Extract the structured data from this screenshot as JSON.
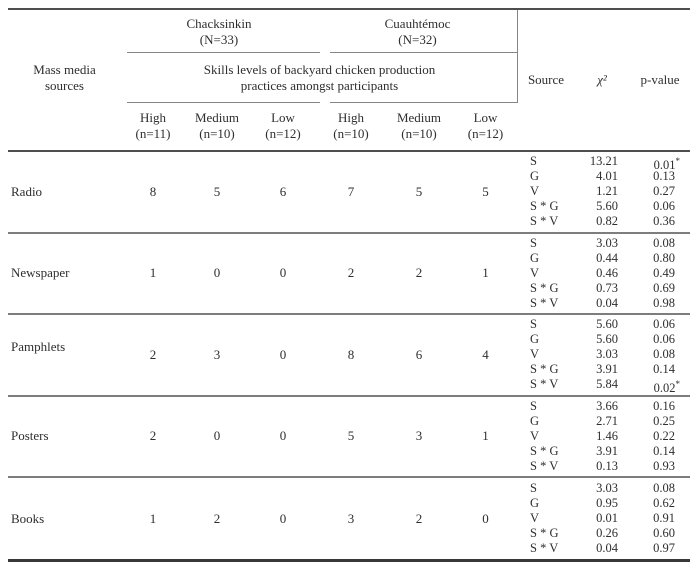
{
  "page": {
    "background": "#ffffff",
    "text_color": "#2e2e2e",
    "rule_color": "#4e4e4e"
  },
  "table": {
    "row_header": {
      "line1": "Mass media",
      "line2": "sources"
    },
    "groups": [
      {
        "name": "Chacksinkin",
        "n_label": "(N=33)"
      },
      {
        "name": "Cuauhtémoc",
        "n_label": "(N=32)"
      }
    ],
    "span_header": {
      "line1": "Skills levels of backyard chicken production",
      "line2": "practices amongst participants"
    },
    "subcolumns": [
      {
        "level": "High",
        "n_label": "(n=11)"
      },
      {
        "level": "Medium",
        "n_label": "(n=10)"
      },
      {
        "level": "Low",
        "n_label": "(n=12)"
      },
      {
        "level": "High",
        "n_label": "(n=10)"
      },
      {
        "level": "Medium",
        "n_label": "(n=10)"
      },
      {
        "level": "Low",
        "n_label": "(n=12)"
      }
    ],
    "stat_headers": {
      "source": "Source",
      "chi_square": "χ²",
      "p_value": "p-value"
    },
    "significance_marker": "*",
    "rows": [
      {
        "label": "Radio",
        "values": [
          "8",
          "5",
          "6",
          "7",
          "5",
          "5"
        ],
        "stats": [
          {
            "source": "S",
            "chi": "13.21",
            "p": "0.01",
            "significant": true
          },
          {
            "source": "G",
            "chi": "4.01",
            "p": "0.13",
            "significant": false
          },
          {
            "source": "V",
            "chi": "1.21",
            "p": "0.27",
            "significant": false
          },
          {
            "source": "S * G",
            "chi": "5.60",
            "p": "0.06",
            "significant": false
          },
          {
            "source": "S * V",
            "chi": "0.82",
            "p": "0.36",
            "significant": false
          }
        ]
      },
      {
        "label": "Newspaper",
        "values": [
          "1",
          "0",
          "0",
          "2",
          "2",
          "1"
        ],
        "stats": [
          {
            "source": "S",
            "chi": "3.03",
            "p": "0.08",
            "significant": false
          },
          {
            "source": "G",
            "chi": "0.44",
            "p": "0.80",
            "significant": false
          },
          {
            "source": "V",
            "chi": "0.46",
            "p": "0.49",
            "significant": false
          },
          {
            "source": "S * G",
            "chi": "0.73",
            "p": "0.69",
            "significant": false
          },
          {
            "source": "S * V",
            "chi": "0.04",
            "p": "0.98",
            "significant": false
          }
        ]
      },
      {
        "label": "Pamphlets",
        "values": [
          "2",
          "3",
          "0",
          "8",
          "6",
          "4"
        ],
        "stats": [
          {
            "source": "S",
            "chi": "5.60",
            "p": "0.06",
            "significant": false
          },
          {
            "source": "G",
            "chi": "5.60",
            "p": "0.06",
            "significant": false
          },
          {
            "source": "V",
            "chi": "3.03",
            "p": "0.08",
            "significant": false
          },
          {
            "source": "S * G",
            "chi": "3.91",
            "p": "0.14",
            "significant": false
          },
          {
            "source": "S * V",
            "chi": "5.84",
            "p": "0.02",
            "significant": true
          }
        ]
      },
      {
        "label": "Posters",
        "values": [
          "2",
          "0",
          "0",
          "5",
          "3",
          "1"
        ],
        "stats": [
          {
            "source": "S",
            "chi": "3.66",
            "p": "0.16",
            "significant": false
          },
          {
            "source": "G",
            "chi": "2.71",
            "p": "0.25",
            "significant": false
          },
          {
            "source": "V",
            "chi": "1.46",
            "p": "0.22",
            "significant": false
          },
          {
            "source": "S * G",
            "chi": "3.91",
            "p": "0.14",
            "significant": false
          },
          {
            "source": "S * V",
            "chi": "0.13",
            "p": "0.93",
            "significant": false
          }
        ]
      },
      {
        "label": "Books",
        "values": [
          "1",
          "2",
          "0",
          "3",
          "2",
          "0"
        ],
        "stats": [
          {
            "source": "S",
            "chi": "3.03",
            "p": "0.08",
            "significant": false
          },
          {
            "source": "G",
            "chi": "0.95",
            "p": "0.62",
            "significant": false
          },
          {
            "source": "V",
            "chi": "0.01",
            "p": "0.91",
            "significant": false
          },
          {
            "source": "S * G",
            "chi": "0.26",
            "p": "0.60",
            "significant": false
          },
          {
            "source": "S * V",
            "chi": "0.04",
            "p": "0.97",
            "significant": false
          }
        ]
      }
    ]
  }
}
